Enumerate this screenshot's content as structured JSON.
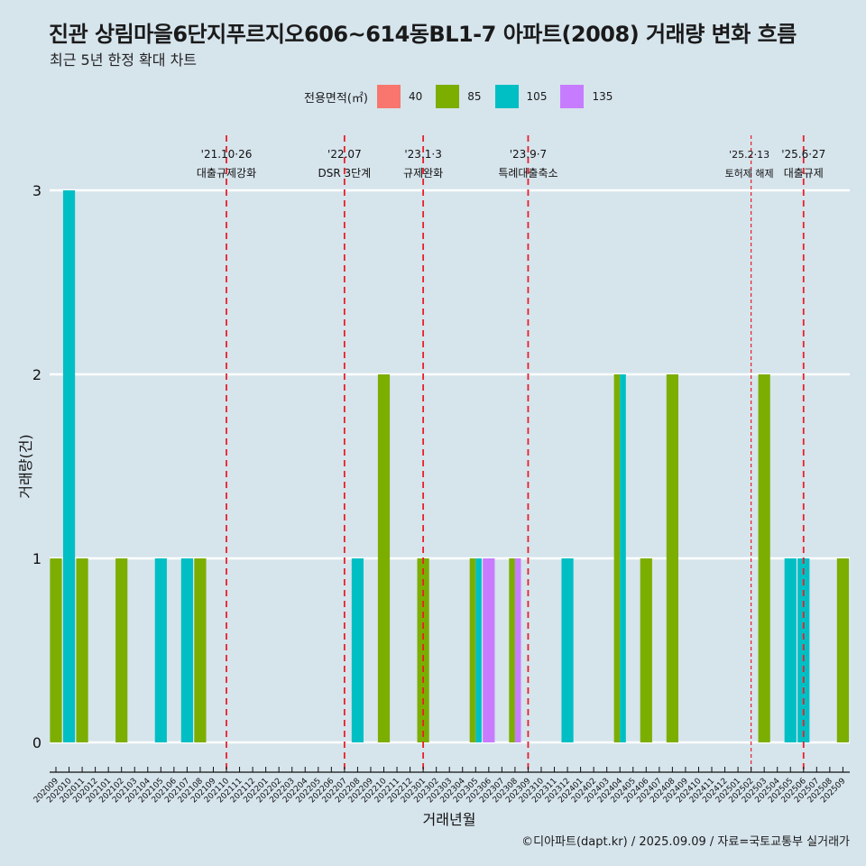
{
  "title": "진관 상림마을6단지푸르지오606~614동BL1-7 아파트(2008) 거래량 변화 흐름",
  "subtitle": "최근 5년 한정 확대 차트",
  "caption": "©디아파트(dapt.kr) / 2025.09.09 / 자료=국토교통부 실거래가",
  "legend": {
    "title": "전용면적(㎡)",
    "items": [
      {
        "label": "40",
        "color": "#F8766D"
      },
      {
        "label": "85",
        "color": "#7CAE00"
      },
      {
        "label": "105",
        "color": "#00BFC4"
      },
      {
        "label": "135",
        "color": "#C77CFF"
      }
    ]
  },
  "chart_data": {
    "type": "bar",
    "title": "진관 상림마을6단지푸르지오606~614동BL1-7 아파트(2008) 거래량 변화 흐름",
    "subtitle": "최근 5년 한정 확대 차트",
    "xlabel": "거래년월",
    "ylabel": "거래량(건)",
    "ylim": [
      0,
      3
    ],
    "yticks": [
      0,
      1,
      2,
      3
    ],
    "grid": "horizontal",
    "legend_position": "top",
    "bar_mode": "dodge",
    "categories": [
      "202009",
      "202010",
      "202011",
      "202012",
      "202101",
      "202102",
      "202103",
      "202104",
      "202105",
      "202106",
      "202107",
      "202108",
      "202109",
      "202110",
      "202111",
      "202112",
      "202201",
      "202202",
      "202203",
      "202204",
      "202205",
      "202206",
      "202207",
      "202208",
      "202209",
      "202210",
      "202211",
      "202212",
      "202301",
      "202302",
      "202303",
      "202304",
      "202305",
      "202306",
      "202307",
      "202308",
      "202309",
      "202310",
      "202311",
      "202312",
      "202401",
      "202402",
      "202403",
      "202404",
      "202405",
      "202406",
      "202407",
      "202408",
      "202409",
      "202410",
      "202411",
      "202412",
      "202501",
      "202502",
      "202503",
      "202504",
      "202505",
      "202506",
      "202507",
      "202508",
      "202509"
    ],
    "series": [
      {
        "name": "40",
        "color": "#F8766D",
        "points": []
      },
      {
        "name": "85",
        "color": "#7CAE00",
        "points": [
          {
            "x": "202009",
            "y": 1
          },
          {
            "x": "202011",
            "y": 1
          },
          {
            "x": "202102",
            "y": 1
          },
          {
            "x": "202108",
            "y": 1
          },
          {
            "x": "202210",
            "y": 2
          },
          {
            "x": "202301",
            "y": 1
          },
          {
            "x": "202305",
            "y": 1
          },
          {
            "x": "202308",
            "y": 1
          },
          {
            "x": "202404",
            "y": 2
          },
          {
            "x": "202406",
            "y": 1
          },
          {
            "x": "202408",
            "y": 2
          },
          {
            "x": "202503",
            "y": 2
          },
          {
            "x": "202509",
            "y": 1
          }
        ]
      },
      {
        "name": "105",
        "color": "#00BFC4",
        "points": [
          {
            "x": "202010",
            "y": 3
          },
          {
            "x": "202105",
            "y": 1
          },
          {
            "x": "202107",
            "y": 1
          },
          {
            "x": "202208",
            "y": 1
          },
          {
            "x": "202305",
            "y": 1
          },
          {
            "x": "202312",
            "y": 1
          },
          {
            "x": "202404",
            "y": 2
          },
          {
            "x": "202505",
            "y": 1
          },
          {
            "x": "202506",
            "y": 1
          }
        ]
      },
      {
        "name": "135",
        "color": "#C77CFF",
        "points": [
          {
            "x": "202306",
            "y": 1
          },
          {
            "x": "202308",
            "y": 1
          }
        ]
      }
    ],
    "annotations": [
      {
        "x": "202110",
        "date": "'21.10·26",
        "label": "대출규제강화",
        "style": "dashed"
      },
      {
        "x": "202207",
        "date": "'22.07",
        "label": "DSR 3단계",
        "style": "dashed"
      },
      {
        "x": "202301",
        "date": "'23.1·3",
        "label": "규제완화",
        "style": "dashed"
      },
      {
        "x": "202309",
        "date": "'23.9·7",
        "label": "특례대출축소",
        "style": "dashed"
      },
      {
        "x": "202502",
        "date": "'25.2·13",
        "label": "토허제 해제",
        "style": "dotted"
      },
      {
        "x": "202506",
        "date": "'25.6·27",
        "label": "대출규제",
        "style": "dashed"
      }
    ]
  }
}
